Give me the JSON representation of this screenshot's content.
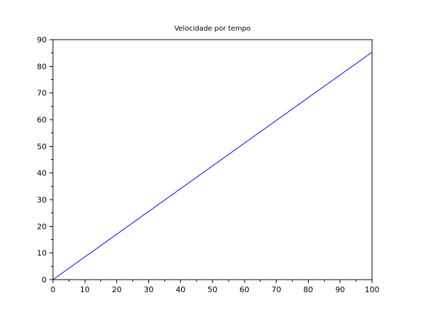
{
  "chart_data": {
    "type": "line",
    "title": "Velocidade por tempo",
    "xlabel": "",
    "ylabel": "",
    "xlim": [
      0,
      100
    ],
    "ylim": [
      0,
      90
    ],
    "x_ticks": [
      0,
      10,
      20,
      30,
      40,
      50,
      60,
      70,
      80,
      90,
      100
    ],
    "y_ticks": [
      0,
      10,
      20,
      30,
      40,
      50,
      60,
      70,
      80,
      90
    ],
    "x_minor_step": 5,
    "y_minor_step": 5,
    "grid": false,
    "series": [
      {
        "color": "#0000ff",
        "x": [
          0,
          100
        ],
        "y": [
          0,
          85.3
        ]
      }
    ]
  }
}
